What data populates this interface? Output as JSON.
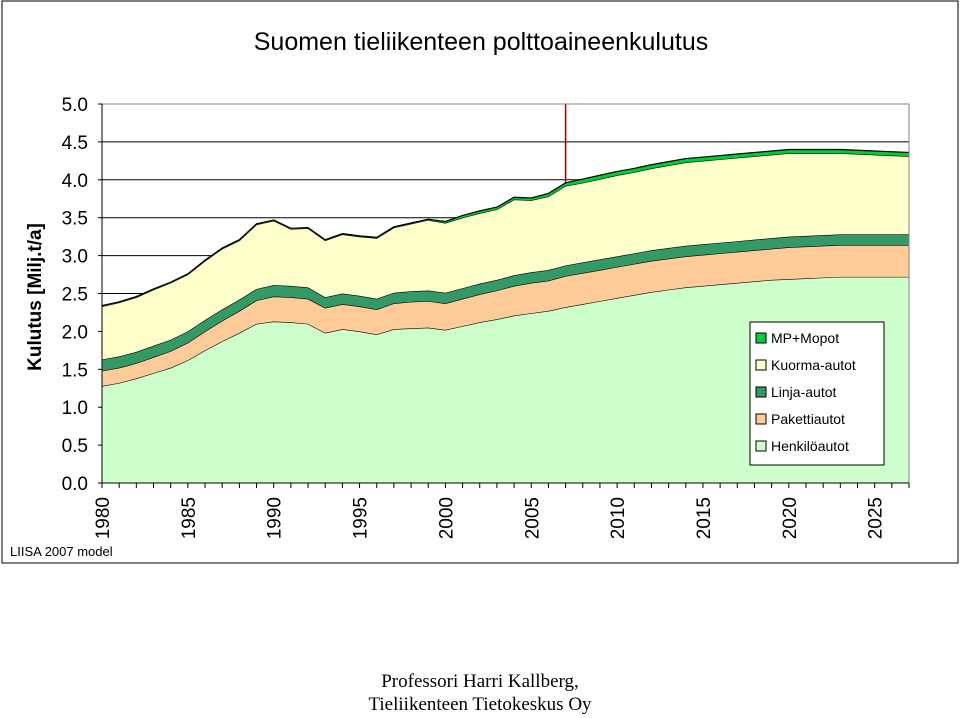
{
  "chart_data": {
    "type": "area",
    "stacked": true,
    "title": "Suomen tieliikenteen polttoaineenkulutus",
    "ylabel": "Kulutus [Milj.t/a]",
    "xlabel": "",
    "ylim": [
      0,
      5.0
    ],
    "xlim": [
      1980,
      2027
    ],
    "grid": true,
    "legend_placement": "bottom-right",
    "y_ticks": [
      "0.0",
      "0.5",
      "1.0",
      "1.5",
      "2.0",
      "2.5",
      "3.0",
      "3.5",
      "4.0",
      "4.5",
      "5.0"
    ],
    "x_ticks": [
      "1980",
      "1985",
      "1990",
      "1995",
      "2000",
      "2005",
      "2010",
      "2015",
      "2020",
      "2025"
    ],
    "vertical_marker_year": 2007,
    "footnote": "LIISA 2007 model",
    "x": [
      1980,
      1981,
      1982,
      1983,
      1984,
      1985,
      1986,
      1987,
      1988,
      1989,
      1990,
      1991,
      1992,
      1993,
      1994,
      1995,
      1996,
      1997,
      1998,
      1999,
      2000,
      2001,
      2002,
      2003,
      2004,
      2005,
      2006,
      2007,
      2008,
      2009,
      2010,
      2011,
      2012,
      2013,
      2014,
      2015,
      2016,
      2017,
      2018,
      2019,
      2020,
      2021,
      2022,
      2023,
      2024,
      2025,
      2026,
      2027
    ],
    "series": [
      {
        "name": "Henkilöautot",
        "color": "#ccffcc",
        "values": [
          1.28,
          1.32,
          1.38,
          1.45,
          1.52,
          1.62,
          1.75,
          1.87,
          1.98,
          2.1,
          2.13,
          2.12,
          2.1,
          1.98,
          2.03,
          2.0,
          1.96,
          2.03,
          2.04,
          2.05,
          2.02,
          2.07,
          2.12,
          2.16,
          2.21,
          2.24,
          2.27,
          2.32,
          2.36,
          2.4,
          2.44,
          2.48,
          2.52,
          2.55,
          2.58,
          2.6,
          2.62,
          2.64,
          2.66,
          2.68,
          2.69,
          2.7,
          2.71,
          2.72,
          2.72,
          2.72,
          2.72,
          2.72
        ]
      },
      {
        "name": "Pakettiautot",
        "color": "#ffcc99",
        "values": [
          0.2,
          0.2,
          0.2,
          0.21,
          0.22,
          0.23,
          0.25,
          0.27,
          0.29,
          0.31,
          0.33,
          0.33,
          0.33,
          0.33,
          0.33,
          0.33,
          0.33,
          0.34,
          0.35,
          0.35,
          0.35,
          0.36,
          0.37,
          0.38,
          0.39,
          0.4,
          0.4,
          0.41,
          0.41,
          0.41,
          0.41,
          0.41,
          0.41,
          0.41,
          0.41,
          0.41,
          0.41,
          0.41,
          0.41,
          0.41,
          0.42,
          0.42,
          0.42,
          0.42,
          0.42,
          0.42,
          0.42,
          0.42
        ]
      },
      {
        "name": "Linja-autot",
        "color": "#339966",
        "values": [
          0.15,
          0.15,
          0.15,
          0.15,
          0.15,
          0.15,
          0.15,
          0.15,
          0.15,
          0.15,
          0.15,
          0.15,
          0.15,
          0.14,
          0.14,
          0.14,
          0.14,
          0.14,
          0.14,
          0.14,
          0.14,
          0.14,
          0.14,
          0.14,
          0.14,
          0.14,
          0.14,
          0.14,
          0.14,
          0.14,
          0.14,
          0.14,
          0.14,
          0.14,
          0.14,
          0.14,
          0.14,
          0.14,
          0.14,
          0.14,
          0.14,
          0.14,
          0.14,
          0.14,
          0.14,
          0.14,
          0.14,
          0.14
        ]
      },
      {
        "name": "Kuorma-autot",
        "color": "#ffffcc",
        "values": [
          0.7,
          0.71,
          0.72,
          0.74,
          0.75,
          0.75,
          0.78,
          0.8,
          0.78,
          0.85,
          0.85,
          0.75,
          0.78,
          0.75,
          0.78,
          0.78,
          0.8,
          0.86,
          0.89,
          0.93,
          0.92,
          0.93,
          0.93,
          0.93,
          1.0,
          0.95,
          0.97,
          1.05,
          1.05,
          1.06,
          1.07,
          1.07,
          1.08,
          1.09,
          1.1,
          1.1,
          1.1,
          1.1,
          1.1,
          1.1,
          1.1,
          1.09,
          1.08,
          1.07,
          1.06,
          1.05,
          1.04,
          1.03
        ]
      },
      {
        "name": "MP+Mopot",
        "color": "#00cc33",
        "values": [
          0.01,
          0.01,
          0.01,
          0.01,
          0.01,
          0.01,
          0.01,
          0.01,
          0.01,
          0.01,
          0.01,
          0.01,
          0.01,
          0.01,
          0.01,
          0.01,
          0.01,
          0.01,
          0.01,
          0.01,
          0.02,
          0.03,
          0.03,
          0.03,
          0.03,
          0.03,
          0.04,
          0.04,
          0.05,
          0.05,
          0.05,
          0.05,
          0.05,
          0.05,
          0.05,
          0.05,
          0.05,
          0.05,
          0.05,
          0.05,
          0.05,
          0.05,
          0.05,
          0.05,
          0.05,
          0.05,
          0.05,
          0.05
        ]
      }
    ],
    "legend_order": [
      "MP+Mopot",
      "Kuorma-autot",
      "Linja-autot",
      "Pakettiautot",
      "Henkilöautot"
    ]
  },
  "caption": {
    "line1": "Professori Harri Kallberg,",
    "line2": "Tieliikenteen Tietokeskus Oy"
  }
}
